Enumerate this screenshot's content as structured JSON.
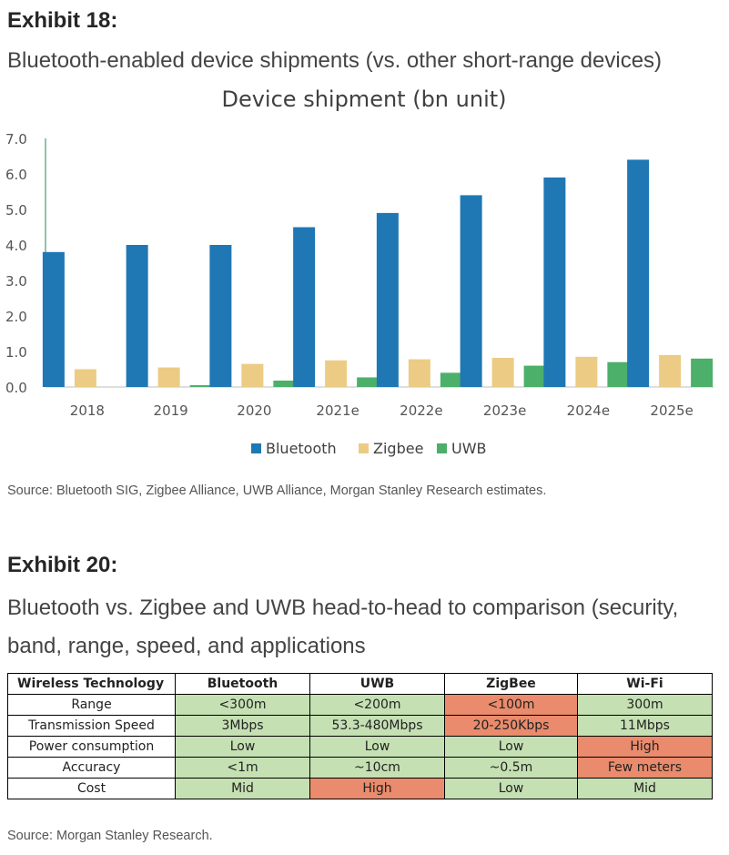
{
  "exhibit18": {
    "label": "Exhibit 18:",
    "title": "Bluetooth-enabled device shipments (vs. other short-range devices)",
    "source": "Source: Bluetooth SIG, Zigbee Alliance, UWB Alliance, Morgan Stanley Research estimates."
  },
  "chart_data": {
    "type": "bar",
    "title": "Device shipment (bn unit)",
    "categories": [
      "2018",
      "2019",
      "2020",
      "2021e",
      "2022e",
      "2023e",
      "2024e",
      "2025e"
    ],
    "series": [
      {
        "name": "Bluetooth",
        "color": "#1f77b4",
        "values": [
          3.8,
          4.0,
          4.0,
          4.5,
          4.9,
          5.4,
          5.9,
          6.4
        ]
      },
      {
        "name": "Zigbee",
        "color": "#eccb84",
        "values": [
          0.5,
          0.55,
          0.65,
          0.75,
          0.78,
          0.82,
          0.85,
          0.9
        ]
      },
      {
        "name": "UWB",
        "color": "#4caf6a",
        "values": [
          0.0,
          0.05,
          0.18,
          0.27,
          0.4,
          0.6,
          0.7,
          0.8
        ]
      }
    ],
    "yticks": [
      "0.0",
      "1.0",
      "2.0",
      "3.0",
      "4.0",
      "5.0",
      "6.0",
      "7.0"
    ],
    "ylim": [
      0,
      7
    ],
    "xlabel": "",
    "ylabel": "",
    "legend": "bottom",
    "grid": false
  },
  "exhibit20": {
    "label": "Exhibit 20:",
    "title": "Bluetooth vs. Zigbee and UWB head-to-head to comparison (security, band, range, speed, and applications",
    "source": "Source: Morgan Stanley Research.",
    "table": {
      "headers": [
        "Wireless Technology",
        "Bluetooth",
        "UWB",
        "ZigBee",
        "Wi-Fi"
      ],
      "rows": [
        {
          "label": "Range",
          "cells": [
            {
              "text": "<300m",
              "status": "good"
            },
            {
              "text": "<200m",
              "status": "good"
            },
            {
              "text": "<100m",
              "status": "bad"
            },
            {
              "text": "300m",
              "status": "good"
            }
          ]
        },
        {
          "label": "Transmission Speed",
          "cells": [
            {
              "text": "3Mbps",
              "status": "good"
            },
            {
              "text": "53.3-480Mbps",
              "status": "good"
            },
            {
              "text": "20-250Kbps",
              "status": "bad"
            },
            {
              "text": "11Mbps",
              "status": "good"
            }
          ]
        },
        {
          "label": "Power consumption",
          "cells": [
            {
              "text": "Low",
              "status": "good"
            },
            {
              "text": "Low",
              "status": "good"
            },
            {
              "text": "Low",
              "status": "good"
            },
            {
              "text": "High",
              "status": "bad"
            }
          ]
        },
        {
          "label": "Accuracy",
          "cells": [
            {
              "text": "<1m",
              "status": "good"
            },
            {
              "text": "~10cm",
              "status": "good"
            },
            {
              "text": "~0.5m",
              "status": "good"
            },
            {
              "text": "Few meters",
              "status": "bad"
            }
          ]
        },
        {
          "label": "Cost",
          "cells": [
            {
              "text": "Mid",
              "status": "good"
            },
            {
              "text": "High",
              "status": "bad"
            },
            {
              "text": "Low",
              "status": "good"
            },
            {
              "text": "Mid",
              "status": "good"
            }
          ]
        }
      ]
    }
  }
}
